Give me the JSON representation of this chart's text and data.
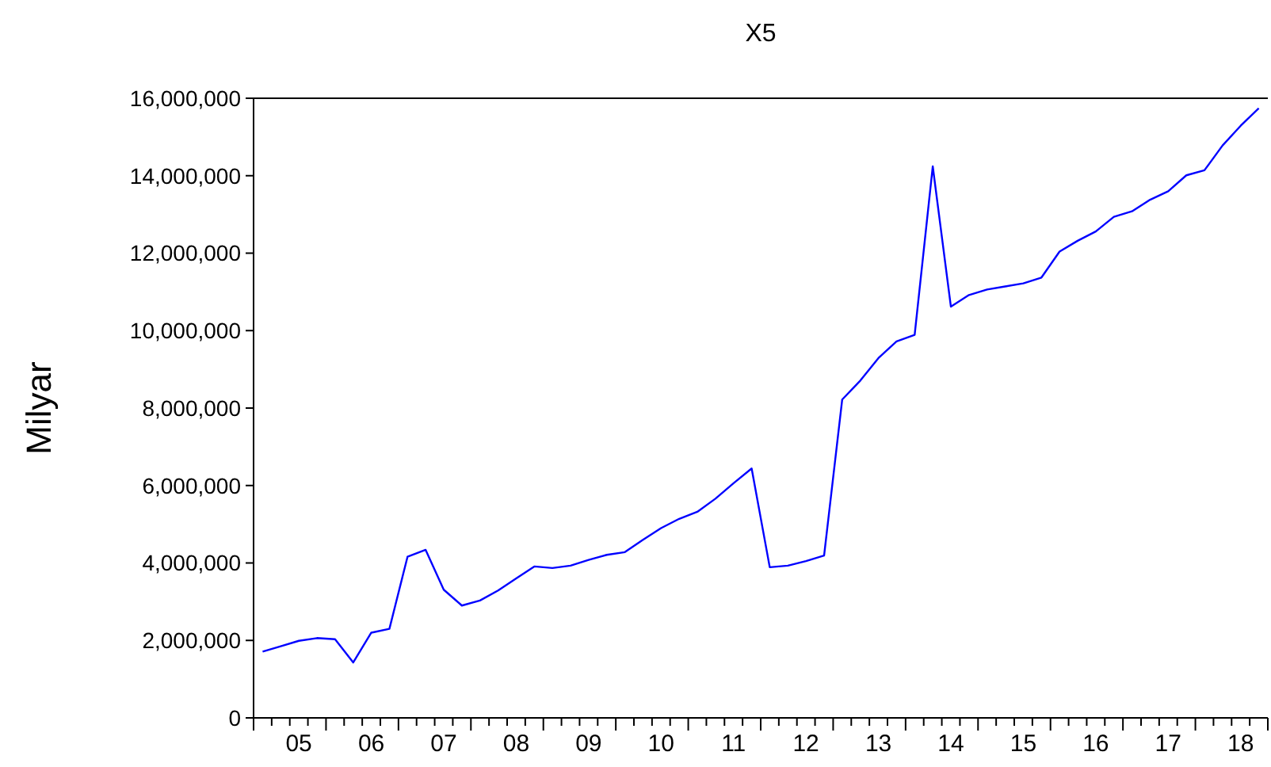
{
  "chart_data": {
    "type": "line",
    "title": "X5",
    "ylabel": "Milyar",
    "categories": [
      null,
      null,
      "05",
      null,
      null,
      null,
      "06",
      null,
      null,
      null,
      "07",
      null,
      null,
      null,
      "08",
      null,
      null,
      null,
      "09",
      null,
      null,
      null,
      "10",
      null,
      null,
      null,
      "11",
      null,
      null,
      null,
      "12",
      null,
      null,
      null,
      "13",
      null,
      null,
      null,
      "14",
      null,
      null,
      null,
      "15",
      null,
      null,
      null,
      "16",
      null,
      null,
      null,
      "17",
      null,
      null,
      null,
      "18",
      null
    ],
    "series": [
      {
        "color": "#0000ff",
        "values": [
          1710000,
          1850000,
          1990000,
          2060000,
          2030000,
          1430000,
          2200000,
          2300000,
          4160000,
          4340000,
          3310000,
          2900000,
          3030000,
          3290000,
          3600000,
          3910000,
          3870000,
          3930000,
          4080000,
          4210000,
          4280000,
          4600000,
          4900000,
          5140000,
          5320000,
          5660000,
          6060000,
          6440000,
          3890000,
          3930000,
          4050000,
          4190000,
          8220000,
          8710000,
          9290000,
          9720000,
          9890000,
          14240000,
          10620000,
          10920000,
          11060000,
          11140000,
          11220000,
          11370000,
          12040000,
          12320000,
          12560000,
          12940000,
          13080000,
          13380000,
          13600000,
          14010000,
          14140000,
          14780000,
          15290000,
          15740000
        ]
      }
    ],
    "ylim": [
      0,
      16000000
    ],
    "yticks": [
      0,
      {
        "value": 2000000,
        "label": "2,000,000"
      },
      {
        "value": 4000000,
        "label": "4,000,000"
      },
      {
        "value": 6000000,
        "label": "6,000,000"
      },
      {
        "value": 8000000,
        "label": "8,000,000"
      },
      {
        "value": 10000000,
        "label": "10,000,000"
      },
      {
        "value": 12000000,
        "label": "12,000,000"
      },
      {
        "value": 14000000,
        "label": "14,000,000"
      },
      {
        "value": 16000000,
        "label": "16,000,000"
      }
    ],
    "grid": false,
    "marker": "none",
    "line_style": "solid"
  }
}
